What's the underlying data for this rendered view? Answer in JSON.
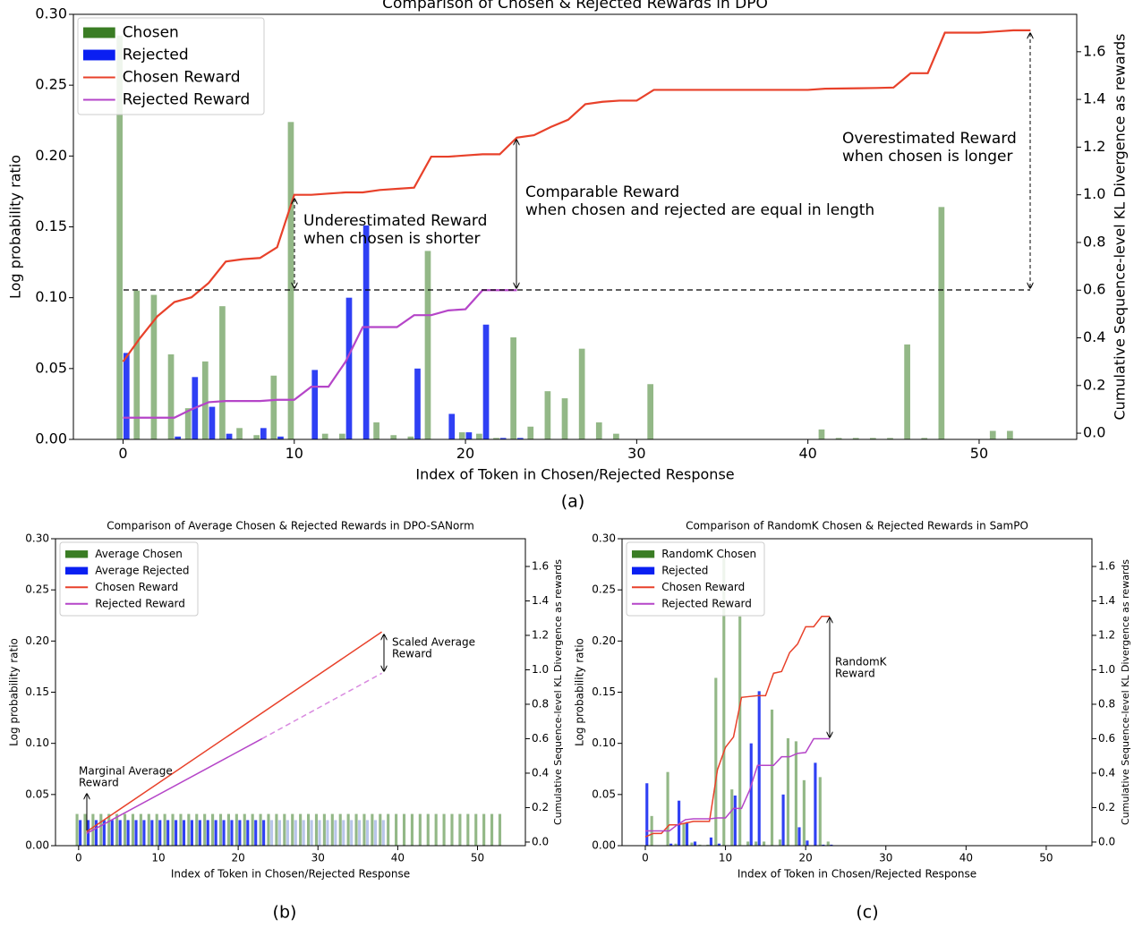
{
  "captions": [
    "(a)",
    "(b)",
    "(c)"
  ],
  "chart_data": [
    {
      "type": "bar",
      "title": "Comparison of Chosen & Rejected Rewards in DPO",
      "xlabel": "Index of Token in Chosen/Rejected Response",
      "ylabel": "Log probability ratio",
      "y2label": "Cumulative Sequence-level KL Divergence as rewards",
      "xlim": [
        -2.9,
        55.7
      ],
      "xticks": [
        0,
        10,
        20,
        30,
        40,
        50
      ],
      "ylim": [
        0,
        0.3
      ],
      "yticks": [
        {
          "value": 0,
          "label": "0.00"
        },
        0.05,
        {
          "value": 0.1,
          "label": "0.10"
        },
        0.15,
        {
          "value": 0.2,
          "label": "0.20"
        },
        0.25,
        {
          "value": 0.3,
          "label": "0.30"
        }
      ],
      "y2lim": [
        -0.026,
        1.757
      ],
      "y2ticks": [
        {
          "value": 0,
          "label": "0.0"
        },
        0.2,
        0.4,
        0.6,
        0.8,
        {
          "value": 1,
          "label": "1.0"
        },
        1.2,
        1.4,
        1.6
      ],
      "legend": "upper left",
      "annotations": [
        [
          "Underestimated Reward",
          "when chosen is shorter"
        ],
        [
          "Comparable Reward",
          "when chosen and rejected are equal in length"
        ],
        [
          "Overestimated Reward",
          "when chosen is longer"
        ]
      ],
      "series": [
        {
          "name": "Chosen",
          "type": "bar",
          "color": "#3a7d24",
          "opacity": 0.55,
          "x": [
            0,
            1,
            2,
            3,
            4,
            5,
            6,
            7,
            8,
            9,
            10,
            11,
            12,
            13,
            14,
            15,
            16,
            17,
            18,
            19,
            20,
            21,
            22,
            23,
            24,
            25,
            26,
            27,
            28,
            29,
            30,
            31,
            32,
            33,
            34,
            35,
            36,
            37,
            38,
            39,
            40,
            41,
            42,
            43,
            44,
            45,
            46,
            47,
            48,
            49,
            50,
            51,
            52,
            53
          ],
          "values": [
            0.285,
            0.105,
            0.102,
            0.06,
            0.022,
            0.055,
            0.094,
            0.008,
            0.003,
            0.045,
            0.224,
            0,
            0.004,
            0.004,
            0,
            0.012,
            0.003,
            0.002,
            0.133,
            0,
            0.005,
            0.004,
            0.001,
            0.072,
            0.009,
            0.034,
            0.029,
            0.064,
            0.012,
            0.004,
            0,
            0.039,
            0,
            0,
            0,
            0,
            0,
            0,
            0,
            0,
            0,
            0.007,
            0.001,
            0.001,
            0.001,
            0.001,
            0.067,
            0.001,
            0.164,
            0,
            0,
            0.006,
            0.006,
            0
          ]
        },
        {
          "name": "Rejected",
          "type": "bar",
          "color": "#0a1ff2",
          "opacity": 0.85,
          "x": [
            0,
            1,
            2,
            3,
            4,
            5,
            6,
            7,
            8,
            9,
            10,
            11,
            12,
            13,
            14,
            15,
            16,
            17,
            18,
            19,
            20,
            21,
            22,
            23
          ],
          "values": [
            0.061,
            0,
            0,
            0.002,
            0.044,
            0.023,
            0.004,
            0,
            0.008,
            0.002,
            0,
            0.049,
            0,
            0.1,
            0.151,
            0,
            0,
            0.05,
            0,
            0.018,
            0.005,
            0.081,
            0.001,
            0.001
          ]
        },
        {
          "name": "Chosen Reward",
          "type": "line",
          "axis": "y2",
          "color": "#e8412a",
          "x": [
            0,
            1,
            2,
            3,
            4,
            5,
            6,
            7,
            8,
            9,
            10,
            11,
            12,
            13,
            14,
            15,
            16,
            17,
            18,
            19,
            20,
            21,
            22,
            23,
            24,
            25,
            26,
            27,
            28,
            29,
            30,
            31,
            32,
            33,
            34,
            35,
            36,
            37,
            38,
            39,
            40,
            41,
            42,
            43,
            44,
            45,
            46,
            47,
            48,
            49,
            50,
            51,
            52,
            53
          ],
          "values": [
            0.3,
            0.4,
            0.49,
            0.55,
            0.57,
            0.63,
            0.72,
            0.73,
            0.735,
            0.78,
            1.0,
            1.0,
            1.005,
            1.01,
            1.01,
            1.02,
            1.025,
            1.03,
            1.16,
            1.16,
            1.165,
            1.17,
            1.17,
            1.24,
            1.25,
            1.285,
            1.315,
            1.38,
            1.39,
            1.395,
            1.395,
            1.44,
            1.44,
            1.44,
            1.44,
            1.44,
            1.44,
            1.44,
            1.44,
            1.44,
            1.44,
            1.445,
            1.446,
            1.447,
            1.448,
            1.45,
            1.51,
            1.51,
            1.68,
            1.68,
            1.68,
            1.685,
            1.69,
            1.69
          ]
        },
        {
          "name": "Rejected Reward",
          "type": "line",
          "axis": "y2",
          "color": "#b545c8",
          "x": [
            0,
            1,
            2,
            3,
            4,
            5,
            6,
            7,
            8,
            9,
            10,
            11,
            12,
            13,
            14,
            15,
            16,
            17,
            18,
            19,
            20,
            21,
            22,
            23
          ],
          "values": [
            0.065,
            0.065,
            0.065,
            0.065,
            0.1,
            0.13,
            0.135,
            0.135,
            0.135,
            0.14,
            0.14,
            0.195,
            0.195,
            0.3,
            0.445,
            0.445,
            0.445,
            0.495,
            0.495,
            0.515,
            0.52,
            0.6,
            0.6,
            0.6
          ]
        }
      ]
    },
    {
      "type": "bar",
      "title": "Comparison of Average Chosen & Rejected Rewards in DPO-SANorm",
      "xlabel": "Index of Token in Chosen/Rejected Response",
      "ylabel": "Log probability ratio",
      "y2label": "Cumulative Sequence-level KL Divergence as rewards",
      "xlim": [
        -2.9,
        56
      ],
      "xticks": [
        0,
        10,
        20,
        30,
        40,
        50
      ],
      "ylim": [
        0,
        0.3
      ],
      "yticks": [
        {
          "value": 0,
          "label": "0.00"
        },
        0.05,
        {
          "value": 0.1,
          "label": "0.10"
        },
        0.15,
        {
          "value": 0.2,
          "label": "0.20"
        },
        0.25,
        {
          "value": 0.3,
          "label": "0.30"
        }
      ],
      "y2lim": [
        -0.021,
        1.761
      ],
      "y2ticks": [
        {
          "value": 0,
          "label": "0.0"
        },
        0.2,
        0.4,
        0.6,
        0.8,
        {
          "value": 1,
          "label": "1.0"
        },
        1.2,
        1.4,
        1.6
      ],
      "legend": "upper left",
      "annotations": [
        [
          "Scaled Average",
          "Reward"
        ],
        [
          "Marginal Average",
          "Reward"
        ]
      ],
      "series": [
        {
          "name": "Average Chosen",
          "type": "bar",
          "color": "#3a7d24",
          "opacity": 0.55,
          "x": [
            0,
            1,
            2,
            3,
            4,
            5,
            6,
            7,
            8,
            9,
            10,
            11,
            12,
            13,
            14,
            15,
            16,
            17,
            18,
            19,
            20,
            21,
            22,
            23,
            24,
            25,
            26,
            27,
            28,
            29,
            30,
            31,
            32,
            33,
            34,
            35,
            36,
            37,
            38,
            39,
            40,
            41,
            42,
            43,
            44,
            45,
            46,
            47,
            48,
            49,
            50,
            51,
            52,
            53
          ],
          "values": [
            0.031,
            0.031,
            0.031,
            0.031,
            0.031,
            0.031,
            0.031,
            0.031,
            0.031,
            0.031,
            0.031,
            0.031,
            0.031,
            0.031,
            0.031,
            0.031,
            0.031,
            0.031,
            0.031,
            0.031,
            0.031,
            0.031,
            0.031,
            0.031,
            0.031,
            0.031,
            0.031,
            0.031,
            0.031,
            0.031,
            0.031,
            0.031,
            0.031,
            0.031,
            0.031,
            0.031,
            0.031,
            0.031,
            0.031,
            0.031,
            0.031,
            0.031,
            0.031,
            0.031,
            0.031,
            0.031,
            0.031,
            0.031,
            0.031,
            0.031,
            0.031,
            0.031,
            0.031,
            0.031
          ]
        },
        {
          "name": "Average Rejected",
          "type": "bar",
          "color": "#0a1ff2",
          "opacity": 0.85,
          "x": [
            0,
            1,
            2,
            3,
            4,
            5,
            6,
            7,
            8,
            9,
            10,
            11,
            12,
            13,
            14,
            15,
            16,
            17,
            18,
            19,
            20,
            21,
            22,
            23
          ],
          "values": [
            0.025,
            0.025,
            0.025,
            0.025,
            0.025,
            0.025,
            0.025,
            0.025,
            0.025,
            0.025,
            0.025,
            0.025,
            0.025,
            0.025,
            0.025,
            0.025,
            0.025,
            0.025,
            0.025,
            0.025,
            0.025,
            0.025,
            0.025,
            0.025
          ]
        },
        {
          "type": "bar",
          "color": "#b9c6ea",
          "opacity": 1,
          "x": [
            24,
            25,
            26,
            27,
            28,
            29,
            30,
            31,
            32,
            33,
            34,
            35,
            36,
            37,
            38
          ],
          "values": [
            0.025,
            0.025,
            0.025,
            0.025,
            0.025,
            0.025,
            0.025,
            0.025,
            0.025,
            0.025,
            0.025,
            0.025,
            0.025,
            0.025,
            0.025
          ]
        },
        {
          "name": "Chosen Reward",
          "type": "line",
          "axis": "y2",
          "color": "#e8412a",
          "x": [
            1,
            38
          ],
          "values": [
            0.06,
            1.22
          ]
        },
        {
          "name": "Rejected Reward",
          "type": "line",
          "axis": "y2",
          "color": "#b545c8",
          "x": [
            1,
            23
          ],
          "values": [
            0.05,
            0.6
          ]
        },
        {
          "type": "line",
          "axis": "y2",
          "color": "#d98ae0",
          "dashed": true,
          "x": [
            23,
            38
          ],
          "values": [
            0.6,
            0.98
          ]
        }
      ]
    },
    {
      "type": "bar",
      "title": "Comparison of RandomK Chosen & Rejected Rewards in SamPO",
      "xlabel": "Index of Token in Chosen/Rejected Response",
      "ylabel": "Log probability ratio",
      "y2label": "Cumulative Sequence-level KL Divergence as rewards",
      "xlim": [
        -2.9,
        55.7
      ],
      "xticks": [
        0,
        10,
        20,
        30,
        40,
        50
      ],
      "ylim": [
        0,
        0.3
      ],
      "yticks": [
        {
          "value": 0,
          "label": "0.00"
        },
        0.05,
        {
          "value": 0.1,
          "label": "0.10"
        },
        0.15,
        {
          "value": 0.2,
          "label": "0.20"
        },
        0.25,
        {
          "value": 0.3,
          "label": "0.30"
        }
      ],
      "y2lim": [
        -0.021,
        1.761
      ],
      "y2ticks": [
        {
          "value": 0,
          "label": "0.0"
        },
        0.2,
        0.4,
        0.6,
        0.8,
        {
          "value": 1,
          "label": "1.0"
        },
        1.2,
        1.4,
        1.6
      ],
      "legend": "upper left",
      "annotations": [
        [
          "RandomK",
          "Reward"
        ]
      ],
      "series": [
        {
          "name": "RandomK Chosen",
          "type": "bar",
          "color": "#3a7d24",
          "opacity": 0.55,
          "x": [
            0,
            1,
            2,
            3,
            4,
            5,
            6,
            7,
            8,
            9,
            10,
            11,
            12,
            13,
            14,
            15,
            16,
            17,
            18,
            19,
            20,
            21,
            22,
            23
          ],
          "values": [
            0,
            0.029,
            0,
            0.072,
            0.002,
            0.022,
            0.003,
            0.001,
            0.001,
            0.164,
            0.285,
            0.055,
            0.224,
            0.004,
            0.004,
            0.004,
            0.133,
            0.006,
            0.105,
            0.102,
            0.064,
            0,
            0.067,
            0.004
          ]
        },
        {
          "name": "Rejected",
          "type": "bar",
          "color": "#0a1ff2",
          "opacity": 0.85,
          "x": [
            0,
            1,
            2,
            3,
            4,
            5,
            6,
            7,
            8,
            9,
            10,
            11,
            12,
            13,
            14,
            15,
            16,
            17,
            18,
            19,
            20,
            21,
            22,
            23
          ],
          "values": [
            0.061,
            0,
            0,
            0.002,
            0.044,
            0.023,
            0.004,
            0,
            0.008,
            0.002,
            0,
            0.049,
            0,
            0.1,
            0.151,
            0,
            0,
            0.05,
            0,
            0.018,
            0.005,
            0.081,
            0.001,
            0.001
          ]
        },
        {
          "name": "Chosen Reward",
          "type": "line",
          "axis": "y2",
          "color": "#e8412a",
          "x": [
            0,
            1,
            2,
            3,
            4,
            5,
            6,
            7,
            8,
            9,
            10,
            11,
            12,
            13,
            14,
            15,
            16,
            17,
            18,
            19,
            20,
            21,
            22,
            23
          ],
          "values": [
            0.03,
            0.05,
            0.05,
            0.1,
            0.1,
            0.11,
            0.12,
            0.12,
            0.12,
            0.42,
            0.55,
            0.61,
            0.84,
            0.845,
            0.85,
            0.85,
            0.98,
            0.99,
            1.1,
            1.15,
            1.25,
            1.25,
            1.31,
            1.31
          ]
        },
        {
          "name": "Rejected Reward",
          "type": "line",
          "axis": "y2",
          "color": "#b545c8",
          "x": [
            0,
            1,
            2,
            3,
            4,
            5,
            6,
            7,
            8,
            9,
            10,
            11,
            12,
            13,
            14,
            15,
            16,
            17,
            18,
            19,
            20,
            21,
            22,
            23
          ],
          "values": [
            0.065,
            0.065,
            0.065,
            0.065,
            0.1,
            0.13,
            0.135,
            0.135,
            0.135,
            0.14,
            0.14,
            0.195,
            0.195,
            0.3,
            0.445,
            0.445,
            0.445,
            0.495,
            0.495,
            0.515,
            0.52,
            0.6,
            0.6,
            0.6
          ]
        }
      ]
    }
  ]
}
